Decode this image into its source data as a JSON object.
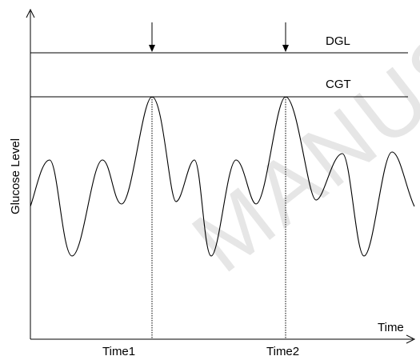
{
  "diagram": {
    "y_axis_label": "Glucose Level",
    "x_axis_label": "Time",
    "lines": [
      {
        "id": "dgl",
        "label": "DGL"
      },
      {
        "id": "cgt",
        "label": "CGT"
      }
    ],
    "time_markers": [
      {
        "id": "time1",
        "label": "Time1"
      },
      {
        "id": "time2",
        "label": "Time2"
      }
    ],
    "watermark_text": "MANUSC",
    "colors": {
      "ink": "#000000",
      "watermark": "#e6e6e6"
    }
  }
}
